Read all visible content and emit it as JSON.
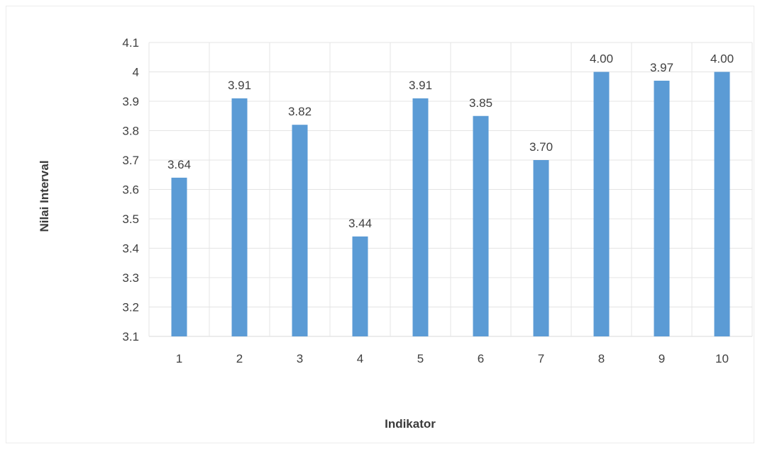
{
  "chart_data": {
    "type": "bar",
    "categories": [
      "1",
      "2",
      "3",
      "4",
      "5",
      "6",
      "7",
      "8",
      "9",
      "10"
    ],
    "values": [
      3.64,
      3.91,
      3.82,
      3.44,
      3.91,
      3.85,
      3.7,
      4.0,
      3.97,
      4.0
    ],
    "data_labels": [
      "3.64",
      "3.91",
      "3.82",
      "3.44",
      "3.91",
      "3.85",
      "3.70",
      "4.00",
      "3.97",
      "4.00"
    ],
    "title": "",
    "xlabel": "Indikator",
    "ylabel": "Nilai Interval",
    "ylim": [
      3.1,
      4.1
    ],
    "y_ticks": [
      3.1,
      3.2,
      3.3,
      3.4,
      3.5,
      3.6,
      3.7,
      3.8,
      3.9,
      4,
      4.1
    ],
    "y_tick_labels": [
      "3.1",
      "3.2",
      "3.3",
      "3.4",
      "3.5",
      "3.6",
      "3.7",
      "3.8",
      "3.9",
      "4",
      "4.1"
    ],
    "grid": true,
    "legend": "none",
    "colors": {
      "bar": "#5b9bd5"
    }
  }
}
